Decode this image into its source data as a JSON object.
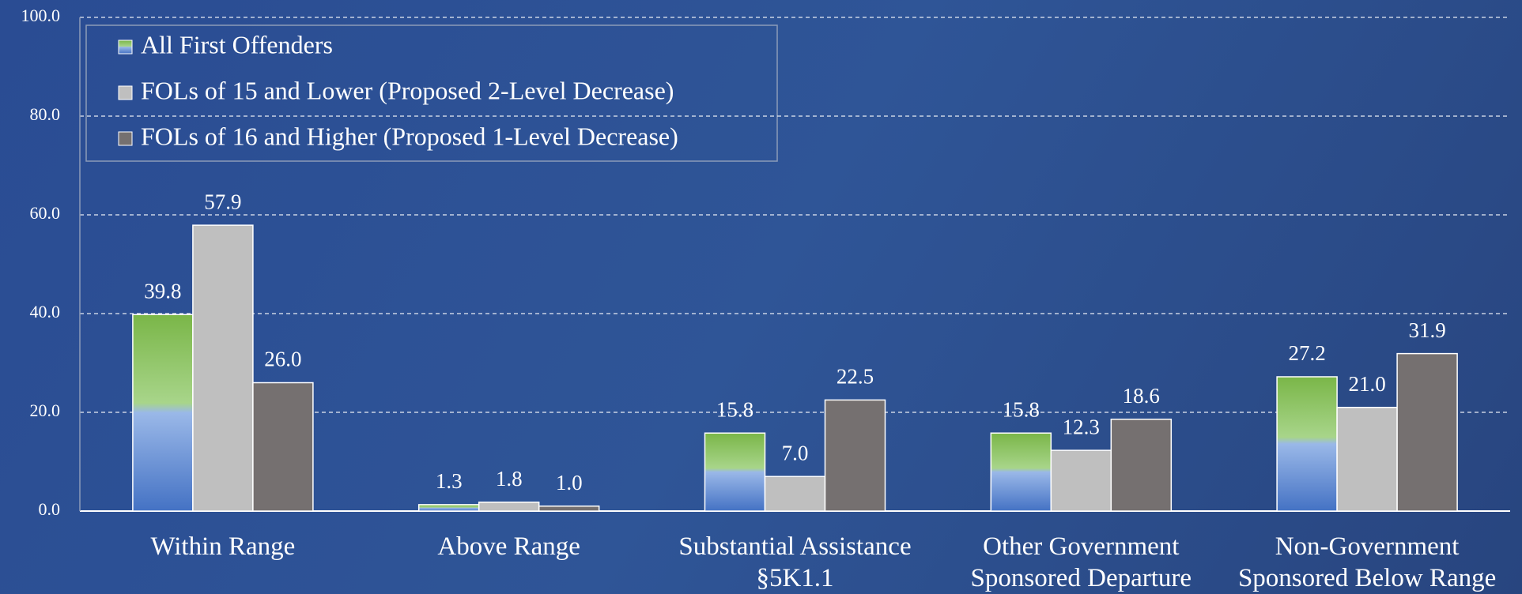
{
  "chart_data": {
    "type": "bar",
    "categories": [
      "Within Range",
      "Above Range",
      "Substantial Assistance §5K1.1",
      "Other Government Sponsored Departure",
      "Non-Government Sponsored Below Range"
    ],
    "series": [
      {
        "name": "All First Offenders",
        "color": "#7ab648",
        "values": [
          39.8,
          1.3,
          15.8,
          15.8,
          27.2
        ]
      },
      {
        "name": "FOLs of 15 and Lower (Proposed 2-Level Decrease)",
        "color": "#bfbfbf",
        "values": [
          57.9,
          1.8,
          7,
          12.3,
          21
        ],
        "value_labels": [
          "57.9",
          "1.8",
          "7.0",
          "12.3",
          "21.0"
        ]
      },
      {
        "name": "FOLs of 16 and Higher (Proposed 1-Level Decrease)",
        "color": "#757070",
        "values": [
          26,
          1,
          22.5,
          18.6,
          31.9
        ],
        "value_labels": [
          "26.0",
          "1.0",
          "22.5",
          "18.6",
          "31.9"
        ]
      }
    ],
    "ylim": [
      0,
      100
    ],
    "yticks": [
      {
        "value": 0,
        "label": "0.0"
      },
      {
        "value": 20,
        "label": "20.0"
      },
      {
        "value": 40,
        "label": "40.0"
      },
      {
        "value": 60,
        "label": "60.0"
      },
      {
        "value": 80,
        "label": "80.0"
      },
      {
        "value": 100,
        "label": "100.0"
      }
    ],
    "grid": true,
    "legend": "top-left"
  }
}
